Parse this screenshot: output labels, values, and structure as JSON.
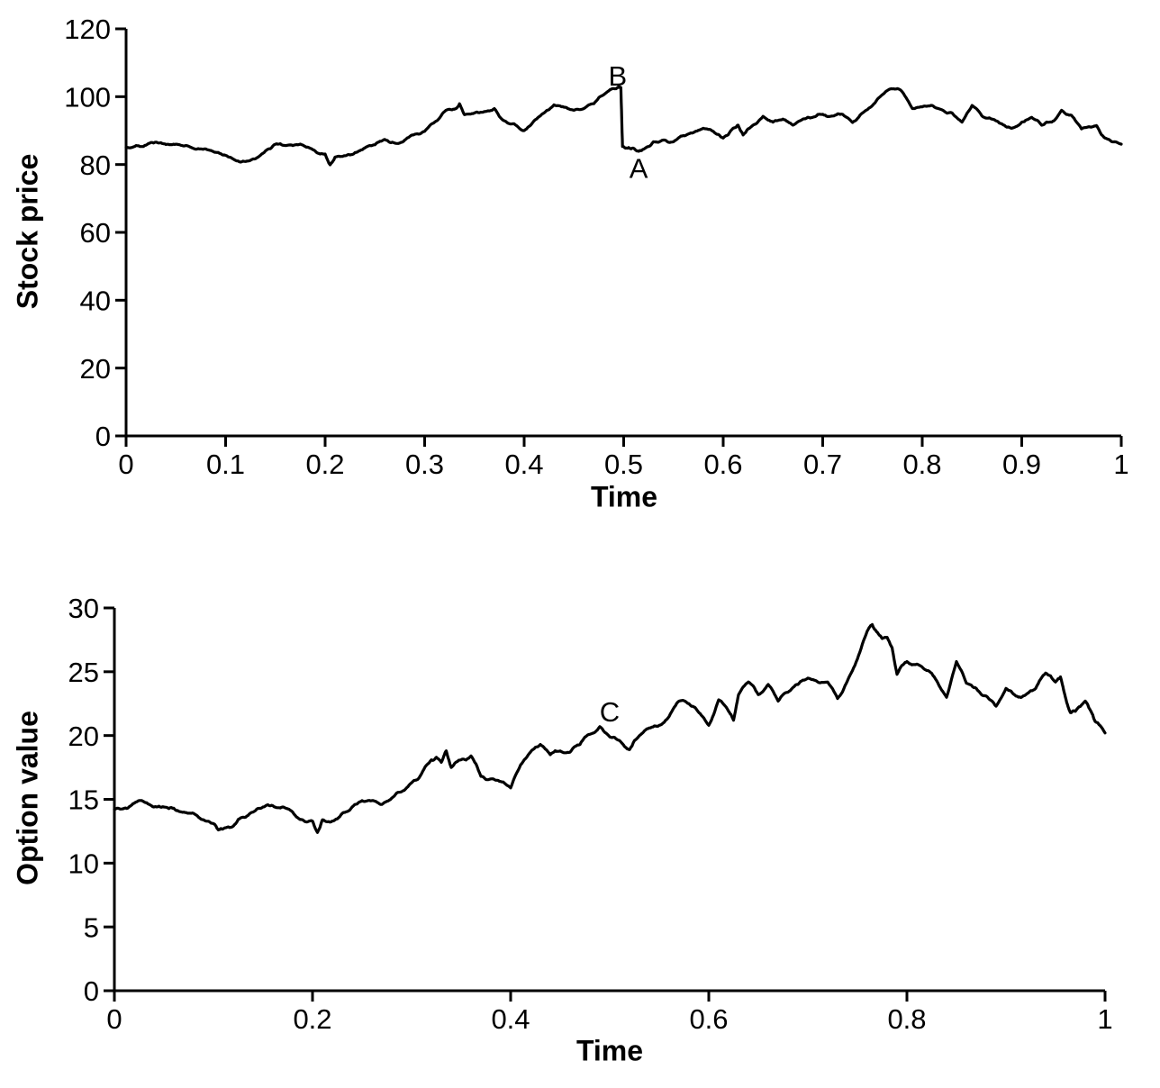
{
  "figure": {
    "background": "#ffffff",
    "curve_color": "#000000"
  },
  "chart_data": [
    {
      "type": "line",
      "name": "stock-price-chart",
      "title": "",
      "xlabel": "Time",
      "ylabel": "Stock price",
      "xlim": [
        0,
        1
      ],
      "ylim": [
        0,
        120
      ],
      "grid": false,
      "legend": false,
      "xtick_values": [
        0,
        0.1,
        0.2,
        0.3,
        0.4,
        0.5,
        0.6,
        0.7,
        0.8,
        0.9,
        1
      ],
      "xtick_labels": [
        "0",
        "0.1",
        "0.2",
        "0.3",
        "0.4",
        "0.5",
        "0.6",
        "0.7",
        "0.8",
        "0.9",
        "1"
      ],
      "ytick_values": [
        0,
        20,
        40,
        60,
        80,
        100,
        120
      ],
      "ytick_labels": [
        "0",
        "20",
        "40",
        "60",
        "80",
        "100",
        "120"
      ],
      "annotations": [
        {
          "text": "B",
          "x": 0.494,
          "y": 106.3
        },
        {
          "text": "A",
          "x": 0.515,
          "y": 79.0
        }
      ],
      "noise": {
        "seed": 1337,
        "amplitude": 5.5,
        "levels": 3
      },
      "series": [
        {
          "name": "stock-price-path",
          "points": [
            [
              0,
              85
            ],
            [
              0.01,
              85.6
            ],
            [
              0.02,
              85.7
            ],
            [
              0.03,
              86.6
            ],
            [
              0.04,
              85.9
            ],
            [
              0.05,
              86
            ],
            [
              0.06,
              85.6
            ],
            [
              0.07,
              84.5
            ],
            [
              0.08,
              84.6
            ],
            [
              0.09,
              83.6
            ],
            [
              0.1,
              82.7
            ],
            [
              0.11,
              81.2
            ],
            [
              0.12,
              80.9
            ],
            [
              0.13,
              81.7
            ],
            [
              0.14,
              84
            ],
            [
              0.15,
              86
            ],
            [
              0.16,
              85.6
            ],
            [
              0.17,
              85.8
            ],
            [
              0.18,
              85.3
            ],
            [
              0.19,
              84
            ],
            [
              0.2,
              83.1
            ],
            [
              0.205,
              79.9
            ],
            [
              0.21,
              82.2
            ],
            [
              0.22,
              82.6
            ],
            [
              0.23,
              83.5
            ],
            [
              0.24,
              84.9
            ],
            [
              0.25,
              85.8
            ],
            [
              0.26,
              87.4
            ],
            [
              0.27,
              86.3
            ],
            [
              0.28,
              87.2
            ],
            [
              0.29,
              88.9
            ],
            [
              0.3,
              89.8
            ],
            [
              0.31,
              92.5
            ],
            [
              0.32,
              95.6
            ],
            [
              0.33,
              96.3
            ],
            [
              0.335,
              97.9
            ],
            [
              0.34,
              94.7
            ],
            [
              0.35,
              95.2
            ],
            [
              0.36,
              95.6
            ],
            [
              0.37,
              96.5
            ],
            [
              0.38,
              92.9
            ],
            [
              0.39,
              92
            ],
            [
              0.4,
              90
            ],
            [
              0.41,
              92.9
            ],
            [
              0.42,
              95.2
            ],
            [
              0.43,
              97.6
            ],
            [
              0.44,
              96.9
            ],
            [
              0.45,
              96
            ],
            [
              0.46,
              96.5
            ],
            [
              0.47,
              97.9
            ],
            [
              0.48,
              100.6
            ],
            [
              0.49,
              102.4
            ],
            [
              0.495,
              103
            ],
            [
              0.4972,
              102.7
            ],
            [
              0.4988,
              85.3
            ],
            [
              0.505,
              85
            ],
            [
              0.51,
              84.8
            ],
            [
              0.515,
              83.9
            ],
            [
              0.52,
              84.5
            ],
            [
              0.53,
              86.7
            ],
            [
              0.54,
              87.2
            ],
            [
              0.55,
              86.7
            ],
            [
              0.56,
              88.5
            ],
            [
              0.57,
              89.4
            ],
            [
              0.58,
              90.7
            ],
            [
              0.59,
              89.8
            ],
            [
              0.6,
              87.8
            ],
            [
              0.61,
              90.7
            ],
            [
              0.615,
              91.6
            ],
            [
              0.62,
              88.7
            ],
            [
              0.63,
              91.6
            ],
            [
              0.64,
              94.2
            ],
            [
              0.65,
              92.5
            ],
            [
              0.66,
              93.4
            ],
            [
              0.67,
              91.6
            ],
            [
              0.68,
              93.4
            ],
            [
              0.69,
              93.9
            ],
            [
              0.7,
              94.8
            ],
            [
              0.71,
              94.3
            ],
            [
              0.72,
              94.8
            ],
            [
              0.73,
              92.4
            ],
            [
              0.74,
              95.2
            ],
            [
              0.75,
              97.4
            ],
            [
              0.76,
              100.6
            ],
            [
              0.77,
              102.3
            ],
            [
              0.78,
              101.4
            ],
            [
              0.79,
              96.5
            ],
            [
              0.8,
              97
            ],
            [
              0.81,
              97.4
            ],
            [
              0.82,
              96.1
            ],
            [
              0.83,
              95.2
            ],
            [
              0.84,
              92.5
            ],
            [
              0.85,
              97.4
            ],
            [
              0.86,
              94.3
            ],
            [
              0.87,
              93.4
            ],
            [
              0.88,
              92
            ],
            [
              0.89,
              90.7
            ],
            [
              0.9,
              92.5
            ],
            [
              0.91,
              93.9
            ],
            [
              0.92,
              91.6
            ],
            [
              0.93,
              92.5
            ],
            [
              0.94,
              96
            ],
            [
              0.95,
              94.5
            ],
            [
              0.96,
              90.5
            ],
            [
              0.97,
              91
            ],
            [
              0.975,
              91.5
            ],
            [
              0.98,
              88.8
            ],
            [
              0.99,
              86.8
            ],
            [
              1,
              86
            ]
          ]
        }
      ]
    },
    {
      "type": "line",
      "name": "option-value-chart",
      "title": "",
      "xlabel": "Time",
      "ylabel": "Option value",
      "xlim": [
        0,
        1
      ],
      "ylim": [
        0,
        30
      ],
      "grid": false,
      "legend": false,
      "xtick_values": [
        0,
        0.2,
        0.4,
        0.6,
        0.8,
        1
      ],
      "xtick_labels": [
        "0",
        "0.2",
        "0.4",
        "0.6",
        "0.8",
        "1"
      ],
      "ytick_values": [
        0,
        5,
        10,
        15,
        20,
        25,
        30
      ],
      "ytick_labels": [
        "0",
        "5",
        "10",
        "15",
        "20",
        "25",
        "30"
      ],
      "annotations": [
        {
          "text": "C",
          "x": 0.5,
          "y": 21.9
        }
      ],
      "noise": {
        "seed": 4242,
        "amplitude": 1.8,
        "levels": 3
      },
      "series": [
        {
          "name": "option-value-path",
          "points": [
            [
              0,
              14.2
            ],
            [
              0.01,
              14.3
            ],
            [
              0.02,
              14.7
            ],
            [
              0.03,
              14.8
            ],
            [
              0.04,
              14.4
            ],
            [
              0.05,
              14.4
            ],
            [
              0.06,
              14.3
            ],
            [
              0.07,
              14
            ],
            [
              0.08,
              13.9
            ],
            [
              0.09,
              13.4
            ],
            [
              0.1,
              13.1
            ],
            [
              0.105,
              12.6
            ],
            [
              0.11,
              12.7
            ],
            [
              0.12,
              12.9
            ],
            [
              0.13,
              13.6
            ],
            [
              0.14,
              14
            ],
            [
              0.15,
              14.4
            ],
            [
              0.16,
              14.5
            ],
            [
              0.17,
              14.4
            ],
            [
              0.18,
              14
            ],
            [
              0.19,
              13.4
            ],
            [
              0.2,
              13.3
            ],
            [
              0.205,
              12.4
            ],
            [
              0.21,
              13.4
            ],
            [
              0.22,
              13.3
            ],
            [
              0.23,
              13.9
            ],
            [
              0.24,
              14.4
            ],
            [
              0.25,
              14.9
            ],
            [
              0.26,
              14.9
            ],
            [
              0.27,
              14.6
            ],
            [
              0.28,
              15.1
            ],
            [
              0.29,
              15.6
            ],
            [
              0.3,
              16.3
            ],
            [
              0.31,
              17
            ],
            [
              0.32,
              18.1
            ],
            [
              0.325,
              18.3
            ],
            [
              0.33,
              17.9
            ],
            [
              0.335,
              18.8
            ],
            [
              0.34,
              17.5
            ],
            [
              0.35,
              18.1
            ],
            [
              0.36,
              18.4
            ],
            [
              0.37,
              16.8
            ],
            [
              0.38,
              16.6
            ],
            [
              0.39,
              16.4
            ],
            [
              0.4,
              15.9
            ],
            [
              0.41,
              17.7
            ],
            [
              0.42,
              18.7
            ],
            [
              0.43,
              19.3
            ],
            [
              0.44,
              18.5
            ],
            [
              0.45,
              18.8
            ],
            [
              0.46,
              18.7
            ],
            [
              0.47,
              19.3
            ],
            [
              0.48,
              20.1
            ],
            [
              0.49,
              20.7
            ],
            [
              0.5,
              19.9
            ],
            [
              0.51,
              19.6
            ],
            [
              0.52,
              18.9
            ],
            [
              0.53,
              20
            ],
            [
              0.54,
              20.6
            ],
            [
              0.55,
              20.8
            ],
            [
              0.56,
              21.5
            ],
            [
              0.57,
              22.7
            ],
            [
              0.58,
              22.5
            ],
            [
              0.59,
              21.8
            ],
            [
              0.6,
              20.8
            ],
            [
              0.61,
              22.8
            ],
            [
              0.62,
              21.9
            ],
            [
              0.625,
              21.2
            ],
            [
              0.63,
              23.2
            ],
            [
              0.64,
              24.2
            ],
            [
              0.65,
              23.2
            ],
            [
              0.66,
              24
            ],
            [
              0.67,
              22.7
            ],
            [
              0.68,
              23.4
            ],
            [
              0.69,
              24
            ],
            [
              0.7,
              24.5
            ],
            [
              0.71,
              24.2
            ],
            [
              0.72,
              24.2
            ],
            [
              0.73,
              22.9
            ],
            [
              0.74,
              24.3
            ],
            [
              0.75,
              26
            ],
            [
              0.76,
              28.2
            ],
            [
              0.765,
              28.7
            ],
            [
              0.77,
              28.1
            ],
            [
              0.775,
              27.6
            ],
            [
              0.78,
              27.7
            ],
            [
              0.785,
              26.9
            ],
            [
              0.79,
              24.8
            ],
            [
              0.795,
              25.5
            ],
            [
              0.8,
              25.8
            ],
            [
              0.81,
              25.6
            ],
            [
              0.82,
              25.1
            ],
            [
              0.83,
              24.3
            ],
            [
              0.84,
              23
            ],
            [
              0.85,
              25.8
            ],
            [
              0.86,
              24.1
            ],
            [
              0.87,
              23.7
            ],
            [
              0.88,
              23.1
            ],
            [
              0.89,
              22.3
            ],
            [
              0.9,
              23.7
            ],
            [
              0.91,
              23.1
            ],
            [
              0.92,
              23.2
            ],
            [
              0.93,
              23.7
            ],
            [
              0.94,
              24.9
            ],
            [
              0.95,
              24.2
            ],
            [
              0.955,
              24.6
            ],
            [
              0.96,
              23
            ],
            [
              0.965,
              21.8
            ],
            [
              0.97,
              21.9
            ],
            [
              0.98,
              22.7
            ],
            [
              0.985,
              22
            ],
            [
              0.99,
              21.1
            ],
            [
              1,
              20.2
            ]
          ]
        }
      ]
    }
  ]
}
